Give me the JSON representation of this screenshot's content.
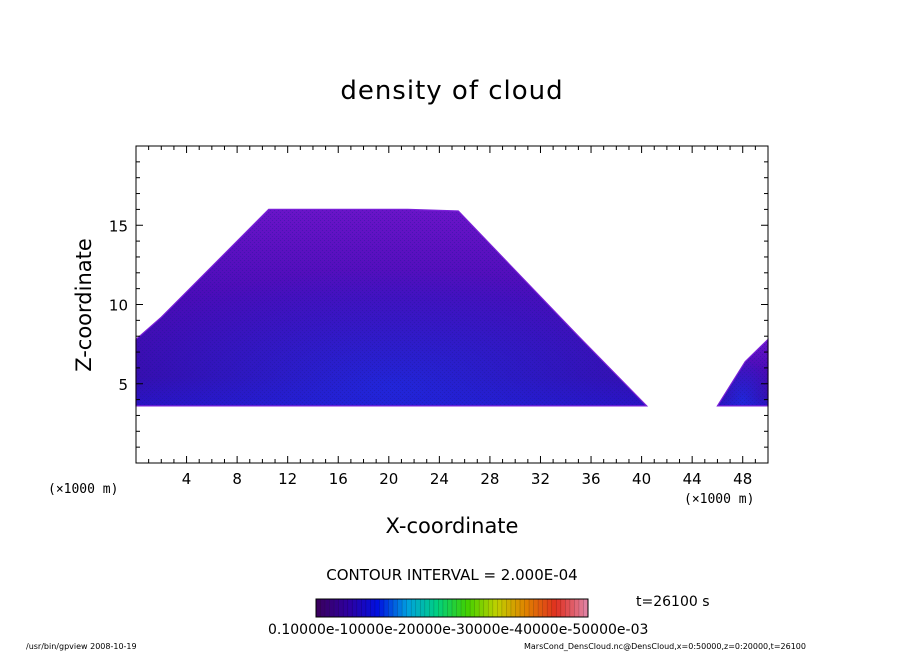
{
  "chart_data": {
    "type": "heatmap",
    "title": "density of cloud",
    "xlabel": "X-coordinate",
    "ylabel": "Z-coordinate",
    "x_unit": "(×1000 m)",
    "xlim": [
      0,
      50
    ],
    "ylim": [
      0,
      20
    ],
    "x_ticks": [
      "4",
      "8",
      "12",
      "16",
      "20",
      "24",
      "28",
      "32",
      "36",
      "40",
      "44",
      "48"
    ],
    "y_ticks": [
      "5",
      "10",
      "15"
    ],
    "regions": [
      {
        "name": "main",
        "base_z": 3.6,
        "x_start": 0,
        "x_end": 40.4,
        "outline": [
          [
            0,
            7.8
          ],
          [
            2,
            9.2
          ],
          [
            10.5,
            16
          ],
          [
            21.5,
            16
          ],
          [
            25.5,
            15.9
          ],
          [
            35,
            8
          ],
          [
            40.4,
            3.6
          ]
        ]
      },
      {
        "name": "right",
        "base_z": 3.6,
        "x_start": 46,
        "x_end": 50,
        "outline": [
          [
            46,
            3.6
          ],
          [
            48.2,
            6.4
          ],
          [
            50,
            7.8
          ]
        ]
      }
    ],
    "contour_interval": "CONTOUR INTERVAL = 2.000E-04",
    "time": "t=26100 s",
    "colorbar_ticks": "0.10000e-10000e-20000e-30000e-40000e-50000e-03",
    "colorbar_colors": [
      "#3a0060",
      "#2e00a0",
      "#0010e0",
      "#00a0e0",
      "#00d080",
      "#40d000",
      "#c0d000",
      "#e08000",
      "#e03020",
      "#e080a0"
    ]
  },
  "footer": {
    "left": "/usr/bin/gpview   2008-10-19",
    "right": "MarsCond_DensCloud.nc@DensCloud,x=0:50000,z=0:20000,t=26100"
  }
}
